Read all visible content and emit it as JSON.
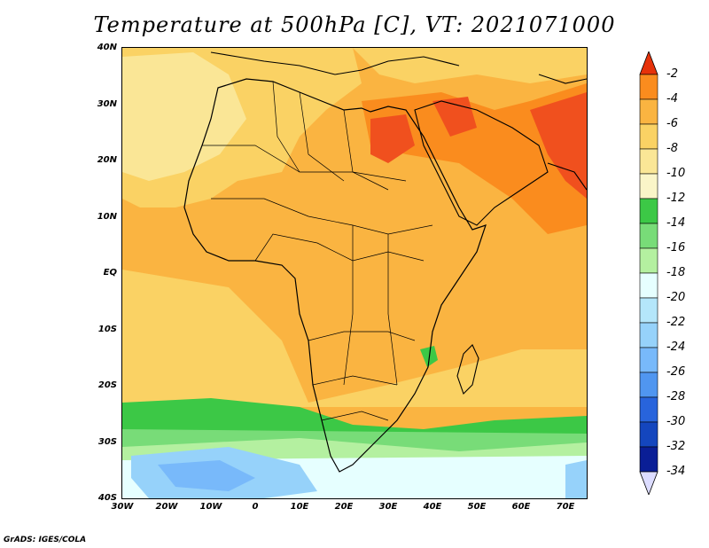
{
  "title": "Temperature at 500hPa [C], VT: 2021071000",
  "credit": "GrADS: IGES/COLA",
  "lat_labels": [
    "40N",
    "30N",
    "20N",
    "10N",
    "EQ",
    "10S",
    "20S",
    "30S",
    "40S"
  ],
  "lon_labels": [
    "30W",
    "20W",
    "10W",
    "0",
    "10E",
    "20E",
    "30E",
    "40E",
    "50E",
    "60E",
    "70E"
  ],
  "colorbar": {
    "labels": [
      "-2",
      "-4",
      "-6",
      "-8",
      "-10",
      "-12",
      "-14",
      "-16",
      "-18",
      "-20",
      "-22",
      "-24",
      "-26",
      "-28",
      "-30",
      "-32",
      "-34"
    ],
    "colors": [
      "#f0501e",
      "#fa8c1e",
      "#fab441",
      "#fad264",
      "#fae696",
      "#faf5c8",
      "#3cc846",
      "#78dc78",
      "#b4f0a0",
      "#e6ffff",
      "#b4e6fa",
      "#96d2fa",
      "#78b9fa",
      "#5096f0",
      "#2864dc",
      "#1446be",
      "#0a1e96",
      "#00005a"
    ],
    "top_arrow_color": "#e6320a",
    "bottom_arrow_color": "#dcdcff"
  },
  "map_colors": {
    "ocean_warm": "#fab441",
    "warm_dark": "#fa8c1e",
    "hot": "#f0501e",
    "mild": "#fad264",
    "cool": "#fae696",
    "green": "#3cc846",
    "light_green": "#78dc78",
    "pale_green": "#b4f0a0",
    "cyan": "#e6ffff",
    "blue": "#96d2fa",
    "deep_blue": "#78b9fa"
  }
}
